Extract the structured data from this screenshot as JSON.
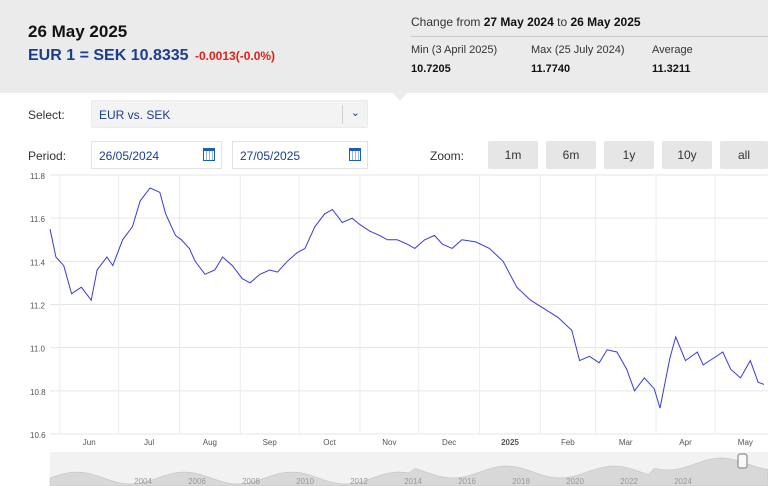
{
  "header": {
    "date": "26 May 2025",
    "rate_text": "EUR 1 = SEK 10.8335",
    "change_text": "-0.0013(-0.0%)",
    "range_prefix": "Change from",
    "range_from": "27 May 2024",
    "range_mid": "to",
    "range_to": "26 May 2025",
    "stats": [
      {
        "label": "Min (3 April 2025)",
        "value": "10.7205"
      },
      {
        "label": "Max (25 July 2024)",
        "value": "11.7740"
      },
      {
        "label": "Average",
        "value": "11.3211"
      }
    ]
  },
  "controls": {
    "select_label": "Select:",
    "select_value": "EUR vs. SEK",
    "period_label": "Period:",
    "period_from": "26/05/2024",
    "period_to": "27/05/2025",
    "zoom_label": "Zoom:",
    "zoom_buttons": [
      "1m",
      "6m",
      "1y",
      "10y",
      "all"
    ]
  },
  "colors": {
    "accent": "#1a3d8f",
    "negative": "#e0201b",
    "line": "#3a3ad6",
    "panel": "#ebebeb"
  },
  "chart_data": {
    "type": "line",
    "series": [
      {
        "x": [
          "2024-05-27",
          "2024-05-30",
          "2024-06-03",
          "2024-06-07",
          "2024-06-12",
          "2024-06-17",
          "2024-06-20",
          "2024-06-25",
          "2024-06-28",
          "2024-07-03",
          "2024-07-08",
          "2024-07-12",
          "2024-07-17",
          "2024-07-22",
          "2024-07-25",
          "2024-07-30",
          "2024-08-02",
          "2024-08-06",
          "2024-08-09",
          "2024-08-14",
          "2024-08-19",
          "2024-08-23",
          "2024-08-28",
          "2024-09-02",
          "2024-09-06",
          "2024-09-11",
          "2024-09-16",
          "2024-09-20",
          "2024-09-25",
          "2024-09-30",
          "2024-10-04",
          "2024-10-09",
          "2024-10-14",
          "2024-10-18",
          "2024-10-23",
          "2024-10-28",
          "2024-11-01",
          "2024-11-06",
          "2024-11-11",
          "2024-11-15",
          "2024-11-20",
          "2024-11-25",
          "2024-11-29",
          "2024-12-04",
          "2024-12-09",
          "2024-12-13",
          "2024-12-18",
          "2024-12-23",
          "2024-12-30",
          "2025-01-06",
          "2025-01-13",
          "2025-01-20",
          "2025-01-27",
          "2025-02-03",
          "2025-02-10",
          "2025-02-17",
          "2025-02-21",
          "2025-02-26",
          "2025-03-03",
          "2025-03-07",
          "2025-03-12",
          "2025-03-17",
          "2025-03-21",
          "2025-03-26",
          "2025-03-31",
          "2025-04-03",
          "2025-04-08",
          "2025-04-11",
          "2025-04-16",
          "2025-04-22",
          "2025-04-25",
          "2025-04-30",
          "2025-05-05",
          "2025-05-09",
          "2025-05-14",
          "2025-05-19",
          "2025-05-23",
          "2025-05-26"
        ],
        "y": [
          11.55,
          11.42,
          11.38,
          11.25,
          11.28,
          11.22,
          11.36,
          11.42,
          11.38,
          11.5,
          11.56,
          11.68,
          11.74,
          11.72,
          11.62,
          11.52,
          11.5,
          11.46,
          11.4,
          11.34,
          11.36,
          11.42,
          11.38,
          11.32,
          11.3,
          11.34,
          11.36,
          11.35,
          11.4,
          11.44,
          11.46,
          11.56,
          11.62,
          11.64,
          11.58,
          11.6,
          11.57,
          11.54,
          11.52,
          11.5,
          11.5,
          11.48,
          11.46,
          11.5,
          11.52,
          11.48,
          11.46,
          11.5,
          11.49,
          11.46,
          11.4,
          11.28,
          11.22,
          11.18,
          11.14,
          11.08,
          10.94,
          10.96,
          10.93,
          10.99,
          10.98,
          10.9,
          10.8,
          10.86,
          10.81,
          10.72,
          10.95,
          11.05,
          10.94,
          10.98,
          10.92,
          10.95,
          10.98,
          10.9,
          10.86,
          10.94,
          10.84,
          10.83
        ]
      }
    ],
    "ylim": [
      10.6,
      11.8
    ],
    "yticks": [
      "10.6",
      "10.8",
      "11.0",
      "11.2",
      "11.4",
      "11.6",
      "11.8"
    ],
    "xticks": [
      "Jun",
      "Jul",
      "Aug",
      "Sep",
      "Oct",
      "Nov",
      "Dec",
      "2025",
      "Feb",
      "Mar",
      "Apr",
      "May"
    ],
    "navigator_labels": [
      "2004",
      "2006",
      "2008",
      "2010",
      "2012",
      "2014",
      "2016",
      "2018",
      "2020",
      "2022",
      "2024"
    ],
    "grid": true
  }
}
